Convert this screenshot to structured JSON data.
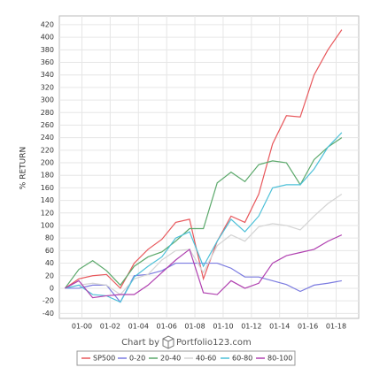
{
  "chart_data": {
    "type": "line",
    "y_label": "% RETURN",
    "credit": "Chart by",
    "credit_site": "Portfolio123.com",
    "x": [
      1998.8,
      1999.78,
      2000.76,
      2001.74,
      2002.72,
      2003.7,
      2004.68,
      2005.66,
      2006.64,
      2007.62,
      2008.6,
      2009.58,
      2010.56,
      2011.54,
      2012.52,
      2013.5,
      2014.48,
      2015.46,
      2016.44,
      2017.42,
      2018.4
    ],
    "series": [
      {
        "name": "SP500",
        "color": "#e8585c",
        "values": [
          0,
          15,
          20,
          22,
          0,
          40,
          62,
          78,
          105,
          110,
          15,
          75,
          115,
          105,
          150,
          230,
          275,
          273,
          340,
          380,
          412
        ]
      },
      {
        "name": "0-20",
        "color": "#7b7be0",
        "values": [
          0,
          0,
          5,
          5,
          -22,
          20,
          22,
          28,
          40,
          40,
          40,
          40,
          32,
          18,
          18,
          12,
          6,
          -5,
          5,
          8,
          12
        ]
      },
      {
        "name": "20-40",
        "color": "#5aa86a",
        "values": [
          0,
          30,
          44,
          28,
          5,
          35,
          50,
          58,
          75,
          95,
          95,
          168,
          185,
          170,
          197,
          203,
          200,
          165,
          205,
          225,
          240
        ]
      },
      {
        "name": "40-60",
        "color": "#d4d4d4",
        "values": [
          0,
          5,
          8,
          5,
          -10,
          15,
          22,
          45,
          60,
          62,
          25,
          68,
          85,
          75,
          98,
          103,
          100,
          93,
          115,
          135,
          150
        ]
      },
      {
        "name": "60-80",
        "color": "#4cc0d8",
        "values": [
          0,
          5,
          -10,
          -12,
          -22,
          18,
          35,
          50,
          80,
          90,
          35,
          75,
          110,
          90,
          115,
          160,
          165,
          165,
          190,
          225,
          248
        ]
      },
      {
        "name": "80-100",
        "color": "#b040b0",
        "values": [
          0,
          12,
          -15,
          -12,
          -10,
          -10,
          5,
          25,
          45,
          62,
          -7,
          -10,
          12,
          0,
          8,
          40,
          52,
          57,
          62,
          75,
          85
        ]
      }
    ],
    "xlim": [
      1998.4,
      2019.6
    ],
    "xticks": [
      {
        "value": 2000,
        "label": "01-00"
      },
      {
        "value": 2002,
        "label": "01-02"
      },
      {
        "value": 2004,
        "label": "01-04"
      },
      {
        "value": 2006,
        "label": "01-06"
      },
      {
        "value": 2008,
        "label": "01-08"
      },
      {
        "value": 2010,
        "label": "01-10"
      },
      {
        "value": 2012,
        "label": "01-12"
      },
      {
        "value": 2014,
        "label": "01-14"
      },
      {
        "value": 2016,
        "label": "01-16"
      },
      {
        "value": 2018,
        "label": "01-18"
      }
    ],
    "ylim": [
      -48,
      434
    ],
    "yticks": [
      -40,
      -20,
      0,
      20,
      40,
      60,
      80,
      100,
      120,
      140,
      160,
      180,
      200,
      220,
      240,
      260,
      280,
      300,
      320,
      340,
      360,
      380,
      400,
      420
    ],
    "grid": true
  }
}
